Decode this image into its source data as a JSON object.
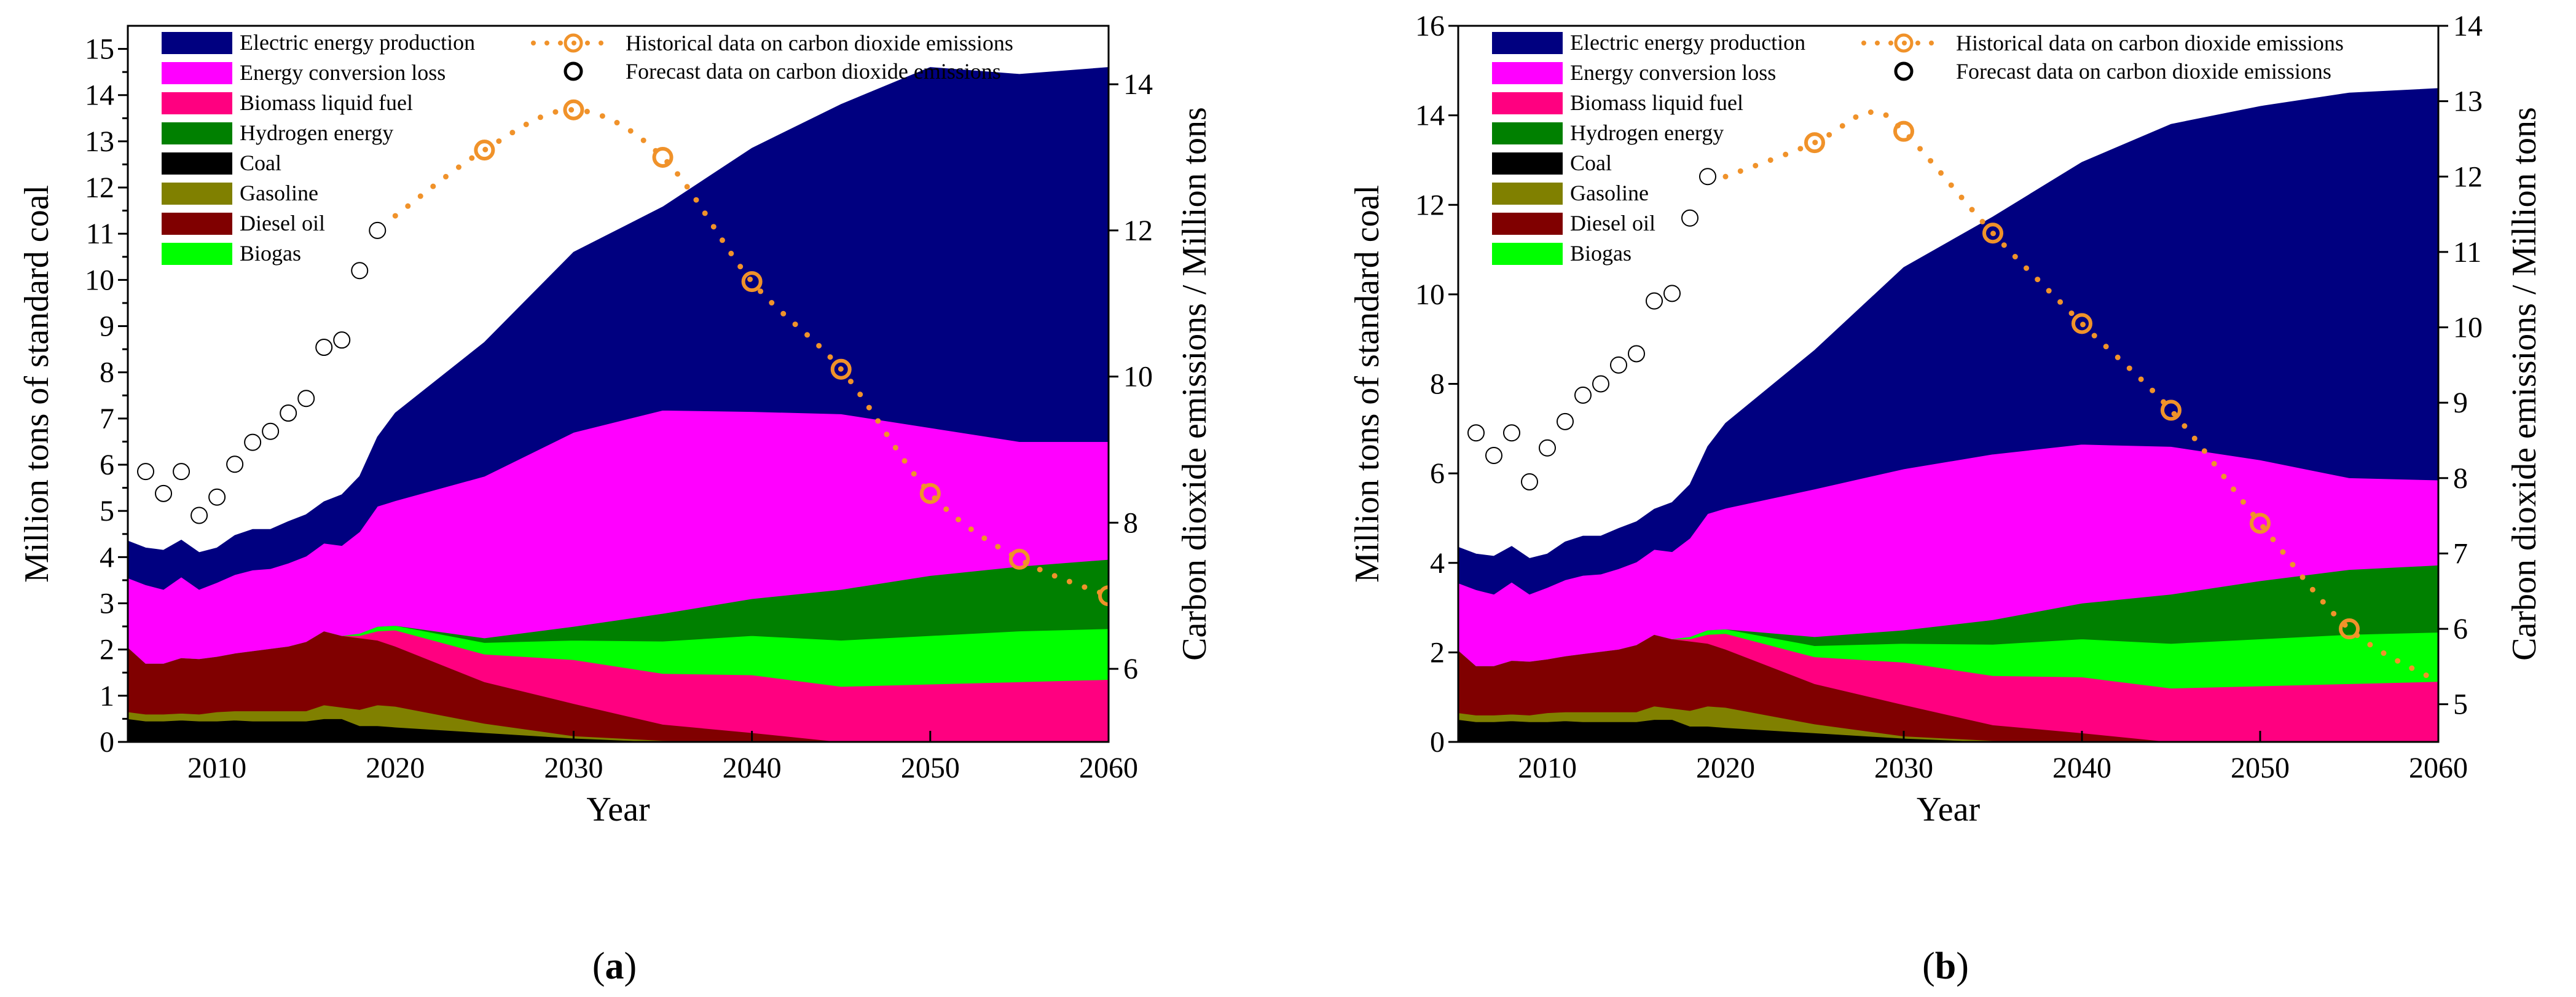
{
  "panel_labels": [
    {
      "pre": "(",
      "letter": "a",
      "post": ")"
    },
    {
      "pre": "(",
      "letter": "b",
      "post": ")"
    }
  ],
  "colors": {
    "electric": "#000080",
    "conversion": "#FF00FF",
    "biomass": "#FF0080",
    "hydrogen": "#008000",
    "coal": "#000000",
    "gasoline": "#808000",
    "diesel": "#800000",
    "biogas": "#00FF00",
    "emission": "#F0922A",
    "forecast_marker": "#000000"
  },
  "chart_data": [
    {
      "type": "area",
      "panel": "a",
      "xlabel": "Year",
      "ylabel": "Million tons of standard coal",
      "y2label": "Carbon dioxide emissions / Million tons",
      "xlim": [
        2005,
        2060
      ],
      "ylim": [
        0,
        15.5
      ],
      "y2lim": [
        5,
        14.8
      ],
      "xticks": [
        2010,
        2020,
        2030,
        2040,
        2050,
        2060
      ],
      "yticks": [
        0,
        0.5,
        1,
        1.5,
        2,
        2.5,
        3,
        3.5,
        4,
        4.5,
        5,
        5.5,
        6,
        6.5,
        7,
        7.5,
        8,
        8.5,
        9,
        9.5,
        10,
        10.5,
        11,
        11.5,
        12,
        12.5,
        13,
        13.5,
        14,
        14.5,
        15
      ],
      "yticklabels": [
        "0",
        "",
        "1",
        "",
        "2",
        "",
        "3",
        "",
        "4",
        "",
        "5",
        "",
        "6",
        "",
        "7",
        "",
        "8",
        "",
        "9",
        "",
        "10",
        "",
        "11",
        "",
        "12",
        "",
        "13",
        "",
        "14",
        "",
        "15"
      ],
      "y2ticks": [
        6,
        8,
        10,
        12,
        14
      ],
      "legend": {
        "position": "top-left",
        "items": [
          {
            "name": "Electric energy production",
            "key": "electric"
          },
          {
            "name": "Energy conversion loss",
            "key": "conversion"
          },
          {
            "name": "Biomass liquid fuel",
            "key": "biomass"
          },
          {
            "name": "Hydrogen energy",
            "key": "hydrogen"
          },
          {
            "name": "Coal",
            "key": "coal"
          },
          {
            "name": "Gasoline",
            "key": "gasoline"
          },
          {
            "name": "Diesel oil",
            "key": "diesel"
          },
          {
            "name": "Biogas",
            "key": "biogas"
          },
          {
            "name": "Historical data on carbon dioxide emissions",
            "key": "historical"
          },
          {
            "name": "Forecast data on carbon dioxide emissions",
            "key": "forecast"
          }
        ]
      },
      "x": [
        2005,
        2006,
        2007,
        2008,
        2009,
        2010,
        2011,
        2012,
        2013,
        2014,
        2015,
        2016,
        2017,
        2018,
        2019,
        2020,
        2025,
        2030,
        2035,
        2040,
        2045,
        2050,
        2055,
        2060
      ],
      "series": [
        {
          "name": "Coal",
          "key": "coal",
          "values": [
            0.5,
            0.45,
            0.45,
            0.47,
            0.45,
            0.45,
            0.47,
            0.45,
            0.45,
            0.45,
            0.45,
            0.5,
            0.5,
            0.35,
            0.35,
            0.32,
            0.2,
            0.08,
            0,
            0,
            0,
            0,
            0,
            0
          ]
        },
        {
          "name": "Gasoline",
          "key": "gasoline",
          "values": [
            0.15,
            0.15,
            0.15,
            0.15,
            0.15,
            0.2,
            0.2,
            0.22,
            0.22,
            0.22,
            0.22,
            0.3,
            0.25,
            0.35,
            0.45,
            0.45,
            0.2,
            0.05,
            0.03,
            0,
            0,
            0,
            0,
            0
          ]
        },
        {
          "name": "Diesel oil",
          "key": "diesel",
          "values": [
            1.4,
            1.1,
            1.1,
            1.2,
            1.2,
            1.2,
            1.25,
            1.3,
            1.35,
            1.4,
            1.5,
            1.6,
            1.55,
            1.55,
            1.4,
            1.3,
            0.9,
            0.7,
            0.35,
            0.2,
            0,
            0,
            0,
            0
          ]
        },
        {
          "name": "Biomass liquid fuel",
          "key": "biomass",
          "values": [
            0,
            0,
            0,
            0,
            0,
            0,
            0,
            0,
            0,
            0,
            0,
            0,
            0,
            0.05,
            0.2,
            0.35,
            0.6,
            0.95,
            1.1,
            1.25,
            1.2,
            1.25,
            1.3,
            1.35
          ]
        },
        {
          "name": "Biogas",
          "key": "biogas",
          "values": [
            0,
            0,
            0,
            0,
            0,
            0,
            0,
            0,
            0,
            0,
            0,
            0,
            0,
            0.05,
            0.1,
            0.1,
            0.25,
            0.42,
            0.7,
            0.85,
            1.0,
            1.05,
            1.1,
            1.1
          ]
        },
        {
          "name": "Hydrogen energy",
          "key": "hydrogen",
          "values": [
            0,
            0,
            0,
            0,
            0,
            0,
            0,
            0,
            0,
            0,
            0,
            0,
            0,
            0,
            0,
            0,
            0.1,
            0.3,
            0.6,
            0.8,
            1.1,
            1.3,
            1.4,
            1.5
          ]
        },
        {
          "name": "Energy conversion loss",
          "key": "conversion",
          "values": [
            1.5,
            1.7,
            1.6,
            1.75,
            1.5,
            1.6,
            1.7,
            1.75,
            1.73,
            1.8,
            1.85,
            1.9,
            1.95,
            2.2,
            2.6,
            2.7,
            3.5,
            4.2,
            4.4,
            4.05,
            3.8,
            3.2,
            2.7,
            2.55
          ]
        },
        {
          "name": "Electric energy production",
          "key": "electric",
          "values": [
            0.8,
            0.8,
            0.85,
            0.8,
            0.8,
            0.75,
            0.85,
            0.88,
            0.85,
            0.9,
            0.9,
            0.9,
            1.1,
            1.2,
            1.5,
            1.9,
            2.9,
            3.9,
            4.4,
            5.7,
            6.7,
            7.8,
            7.95,
            8.1
          ]
        }
      ],
      "forecast": {
        "x": [
          2006,
          2007,
          2008,
          2009,
          2010,
          2011,
          2012,
          2013,
          2014,
          2015,
          2016,
          2017,
          2018,
          2019
        ],
        "values": [
          8.7,
          8.4,
          8.7,
          8.1,
          8.35,
          8.8,
          9.1,
          9.25,
          9.5,
          9.7,
          10.4,
          10.5,
          11.45,
          12.0
        ]
      },
      "historical": {
        "x": [
          2020,
          2025,
          2030,
          2035,
          2040,
          2045,
          2050,
          2055,
          2060
        ],
        "values": [
          12.2,
          13.1,
          13.65,
          13.0,
          11.3,
          10.1,
          8.4,
          7.5,
          7.0
        ],
        "markers_at": [
          2025,
          2030,
          2035,
          2040,
          2045,
          2050,
          2055,
          2060
        ]
      }
    },
    {
      "type": "area",
      "panel": "b",
      "xlabel": "Year",
      "ylabel": "Million tons of standard coal",
      "y2label": "Carbon dioxide emissions / Million tons",
      "xlim": [
        2005,
        2060
      ],
      "ylim": [
        0,
        16
      ],
      "y2lim": [
        4.5,
        14
      ],
      "xticks": [
        2010,
        2020,
        2030,
        2040,
        2050,
        2060
      ],
      "yticks": [
        0,
        2,
        4,
        6,
        8,
        10,
        12,
        14,
        16
      ],
      "yticklabels": [
        "0",
        "2",
        "4",
        "6",
        "8",
        "10",
        "12",
        "14",
        "16"
      ],
      "y2ticks": [
        5,
        6,
        7,
        8,
        9,
        10,
        11,
        12,
        13,
        14
      ],
      "legend": {
        "position": "top-left",
        "items": [
          {
            "name": "Electric energy production",
            "key": "electric"
          },
          {
            "name": "Energy conversion loss",
            "key": "conversion"
          },
          {
            "name": "Biomass liquid fuel",
            "key": "biomass"
          },
          {
            "name": "Hydrogen energy",
            "key": "hydrogen"
          },
          {
            "name": "Coal",
            "key": "coal"
          },
          {
            "name": "Gasoline",
            "key": "gasoline"
          },
          {
            "name": "Diesel oil",
            "key": "diesel"
          },
          {
            "name": "Biogas",
            "key": "biogas"
          },
          {
            "name": "Historical data on carbon dioxide emissions",
            "key": "historical"
          },
          {
            "name": "Forecast data on carbon dioxide emissions",
            "key": "forecast"
          }
        ]
      },
      "x": [
        2005,
        2006,
        2007,
        2008,
        2009,
        2010,
        2011,
        2012,
        2013,
        2014,
        2015,
        2016,
        2017,
        2018,
        2019,
        2020,
        2025,
        2030,
        2035,
        2040,
        2045,
        2050,
        2055,
        2060
      ],
      "series": [
        {
          "name": "Coal",
          "key": "coal",
          "values": [
            0.5,
            0.45,
            0.45,
            0.47,
            0.45,
            0.45,
            0.47,
            0.45,
            0.45,
            0.45,
            0.45,
            0.5,
            0.5,
            0.35,
            0.35,
            0.32,
            0.2,
            0.08,
            0,
            0,
            0,
            0,
            0,
            0
          ]
        },
        {
          "name": "Gasoline",
          "key": "gasoline",
          "values": [
            0.15,
            0.15,
            0.15,
            0.15,
            0.15,
            0.2,
            0.2,
            0.22,
            0.22,
            0.22,
            0.22,
            0.3,
            0.25,
            0.35,
            0.45,
            0.45,
            0.2,
            0.05,
            0.03,
            0,
            0,
            0,
            0,
            0
          ]
        },
        {
          "name": "Diesel oil",
          "key": "diesel",
          "values": [
            1.4,
            1.1,
            1.1,
            1.2,
            1.2,
            1.2,
            1.25,
            1.3,
            1.35,
            1.4,
            1.5,
            1.6,
            1.55,
            1.55,
            1.4,
            1.3,
            0.9,
            0.7,
            0.35,
            0.2,
            0,
            0,
            0,
            0
          ]
        },
        {
          "name": "Biomass liquid fuel",
          "key": "biomass",
          "values": [
            0,
            0,
            0,
            0,
            0,
            0,
            0,
            0,
            0,
            0,
            0,
            0,
            0,
            0.05,
            0.2,
            0.35,
            0.6,
            0.95,
            1.1,
            1.25,
            1.2,
            1.25,
            1.3,
            1.35
          ]
        },
        {
          "name": "Biogas",
          "key": "biogas",
          "values": [
            0,
            0,
            0,
            0,
            0,
            0,
            0,
            0,
            0,
            0,
            0,
            0,
            0,
            0.05,
            0.1,
            0.1,
            0.25,
            0.42,
            0.7,
            0.85,
            1.0,
            1.05,
            1.1,
            1.1
          ]
        },
        {
          "name": "Hydrogen energy",
          "key": "hydrogen",
          "values": [
            0,
            0,
            0,
            0,
            0,
            0,
            0,
            0,
            0,
            0,
            0,
            0,
            0,
            0,
            0,
            0,
            0.2,
            0.3,
            0.55,
            0.8,
            1.1,
            1.3,
            1.45,
            1.5
          ]
        },
        {
          "name": "Energy conversion loss",
          "key": "conversion",
          "values": [
            1.5,
            1.7,
            1.6,
            1.75,
            1.5,
            1.6,
            1.7,
            1.75,
            1.73,
            1.8,
            1.85,
            1.9,
            1.95,
            2.2,
            2.6,
            2.7,
            3.3,
            3.6,
            3.7,
            3.55,
            3.3,
            2.7,
            2.05,
            1.9
          ]
        },
        {
          "name": "Electric energy production",
          "key": "electric",
          "values": [
            0.8,
            0.8,
            0.85,
            0.8,
            0.8,
            0.75,
            0.85,
            0.88,
            0.85,
            0.9,
            0.9,
            0.9,
            1.1,
            1.2,
            1.5,
            1.9,
            3.1,
            4.5,
            5.3,
            6.3,
            7.2,
            7.9,
            8.6,
            8.75
          ]
        }
      ],
      "forecast": {
        "x": [
          2006,
          2007,
          2008,
          2009,
          2010,
          2011,
          2012,
          2013,
          2014,
          2015,
          2016,
          2017,
          2018,
          2019
        ],
        "values": [
          8.6,
          8.3,
          8.6,
          7.95,
          8.4,
          8.75,
          9.1,
          9.25,
          9.5,
          9.65,
          10.35,
          10.45,
          11.45,
          12.0
        ]
      },
      "historical": {
        "x": [
          2020,
          2025,
          2028,
          2030,
          2035,
          2040,
          2045,
          2050,
          2055,
          2060
        ],
        "values": [
          12.0,
          12.45,
          12.85,
          12.6,
          11.25,
          10.05,
          8.9,
          7.4,
          6.0,
          5.3
        ],
        "markers_at": [
          2025,
          2030,
          2035,
          2040,
          2045,
          2050,
          2055
        ]
      }
    }
  ]
}
